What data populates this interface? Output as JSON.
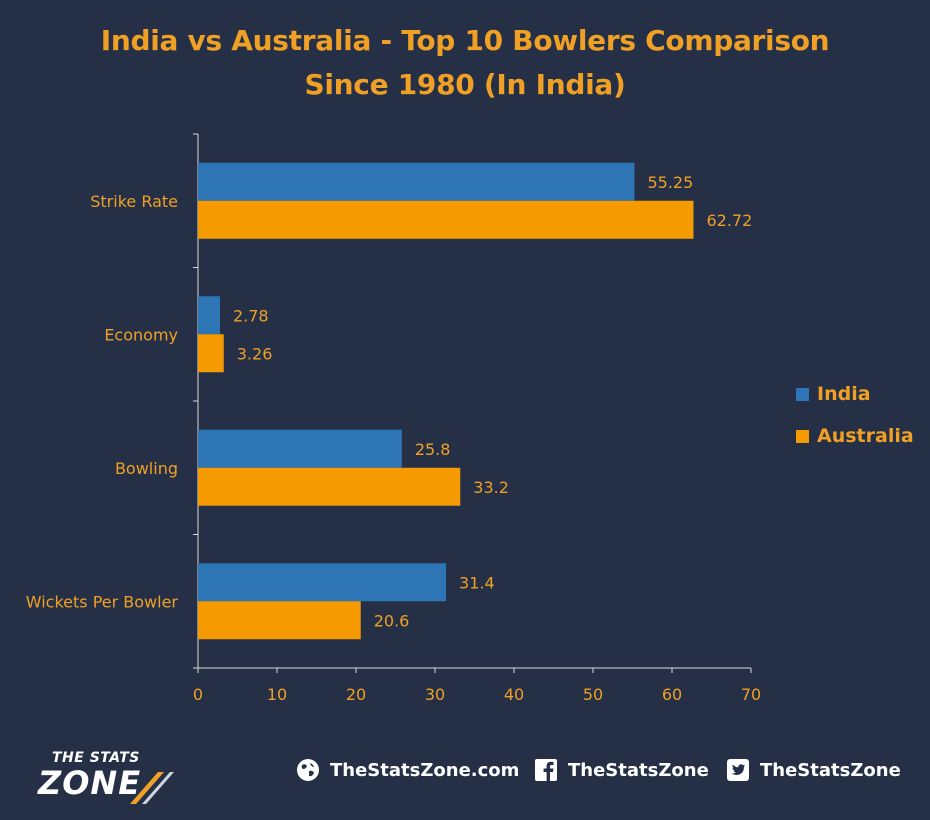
{
  "title": {
    "line1": "India vs Australia - Top 10 Bowlers Comparison",
    "line2": "Since 1980 (In India)"
  },
  "colors": {
    "background": "#253047",
    "india": "#2e75b6",
    "australia": "#f59a00",
    "text": "#f0a024",
    "axis": "#d9d9d9"
  },
  "chart_data": {
    "type": "bar",
    "orientation": "horizontal",
    "categories": [
      "Strike Rate",
      "Economy",
      "Bowling",
      "Wickets Per Bowler"
    ],
    "series": [
      {
        "name": "India",
        "values": [
          55.25,
          2.78,
          25.8,
          31.4
        ],
        "labels": [
          "55.25",
          "2.78",
          "25.8",
          "31.4"
        ]
      },
      {
        "name": "Australia",
        "values": [
          62.72,
          3.26,
          33.2,
          20.6
        ],
        "labels": [
          "62.72",
          "3.26",
          "33.2",
          "20.6"
        ]
      }
    ],
    "xlim": [
      0,
      70
    ],
    "xticks": [
      "0",
      "10",
      "20",
      "30",
      "40",
      "50",
      "60",
      "70"
    ],
    "grid": false,
    "legend_position": "right"
  },
  "legend": [
    {
      "label": "India",
      "color": "#2e75b6"
    },
    {
      "label": "Australia",
      "color": "#f59a00"
    }
  ],
  "footer": {
    "logo_line1": "THE STATS",
    "logo_line2": "ZONE",
    "website": "TheStatsZone.com",
    "facebook": "TheStatsZone",
    "twitter": "TheStatsZone",
    "icons": [
      "globe-icon",
      "facebook-icon",
      "twitter-icon"
    ]
  }
}
